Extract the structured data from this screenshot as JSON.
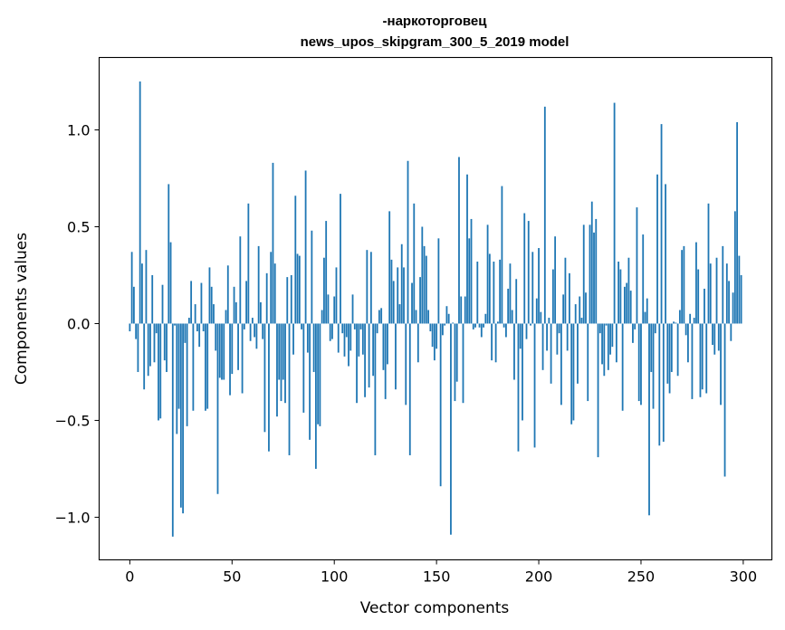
{
  "chart_data": {
    "type": "bar",
    "title": "-наркоторговец",
    "subtitle": "news_upos_skipgram_300_5_2019 model",
    "xlabel": "Vector components",
    "ylabel": "Components values",
    "xlim": [
      -15,
      314
    ],
    "ylim": [
      -1.22,
      1.374
    ],
    "xticks": [
      0,
      50,
      100,
      150,
      200,
      250,
      300
    ],
    "xtick_labels": [
      "0",
      "50",
      "100",
      "150",
      "200",
      "250",
      "300"
    ],
    "yticks": [
      -1.0,
      -0.5,
      0.0,
      0.5,
      1.0
    ],
    "ytick_labels": [
      "−1.0",
      "−0.5",
      "0.0",
      "0.5",
      "1.0"
    ],
    "grid": false,
    "bar_color": "#1f77b4",
    "bar_width": 0.8,
    "values": [
      -0.04,
      0.37,
      0.19,
      -0.08,
      -0.25,
      1.25,
      0.31,
      -0.34,
      0.38,
      -0.27,
      -0.22,
      0.25,
      -0.2,
      -0.05,
      -0.5,
      -0.49,
      0.2,
      -0.19,
      -0.25,
      0.72,
      0.42,
      -1.1,
      -0.01,
      -0.57,
      -0.44,
      -0.95,
      -0.98,
      -0.1,
      -0.53,
      0.03,
      0.22,
      -0.45,
      0.1,
      -0.04,
      -0.12,
      0.21,
      -0.04,
      -0.45,
      -0.44,
      0.29,
      0.19,
      0.1,
      -0.14,
      -0.88,
      -0.28,
      -0.29,
      -0.29,
      0.07,
      0.3,
      -0.37,
      -0.26,
      0.19,
      0.11,
      -0.24,
      0.45,
      -0.36,
      -0.03,
      0.22,
      0.62,
      -0.09,
      0.03,
      -0.07,
      -0.13,
      0.4,
      0.11,
      -0.08,
      -0.56,
      0.26,
      -0.66,
      0.37,
      0.83,
      0.31,
      -0.48,
      -0.29,
      -0.4,
      -0.29,
      -0.41,
      0.24,
      -0.68,
      0.25,
      -0.16,
      0.66,
      0.36,
      0.35,
      -0.03,
      -0.46,
      0.79,
      -0.15,
      -0.6,
      0.48,
      -0.25,
      -0.75,
      -0.52,
      -0.53,
      0.07,
      0.34,
      0.53,
      0.15,
      -0.09,
      -0.08,
      0.14,
      0.29,
      -0.15,
      0.67,
      -0.05,
      -0.17,
      -0.07,
      -0.22,
      -0.14,
      0.15,
      -0.03,
      -0.41,
      -0.17,
      -0.03,
      -0.16,
      -0.38,
      0.38,
      -0.33,
      0.37,
      -0.27,
      -0.68,
      -0.05,
      0.07,
      0.08,
      -0.24,
      -0.39,
      -0.21,
      0.58,
      0.33,
      0.22,
      -0.34,
      0.29,
      0.1,
      0.41,
      0.29,
      -0.42,
      0.84,
      -0.68,
      0.21,
      0.62,
      0.07,
      -0.2,
      0.24,
      0.5,
      0.4,
      0.35,
      0.07,
      -0.04,
      -0.12,
      -0.19,
      -0.13,
      0.44,
      -0.84,
      -0.06,
      -0.01,
      0.09,
      0.05,
      -1.09,
      0.005,
      -0.4,
      -0.3,
      0.86,
      0.14,
      -0.41,
      0.14,
      0.77,
      0.44,
      0.54,
      -0.03,
      -0.02,
      0.32,
      -0.02,
      -0.07,
      -0.02,
      0.05,
      0.51,
      0.36,
      -0.19,
      0.32,
      -0.2,
      0.01,
      0.33,
      0.71,
      -0.02,
      -0.07,
      0.18,
      0.31,
      0.07,
      -0.29,
      0.23,
      -0.66,
      -0.13,
      -0.5,
      0.57,
      -0.08,
      0.53,
      -0.01,
      0.37,
      -0.64,
      0.13,
      0.39,
      0.06,
      -0.24,
      1.12,
      -0.14,
      0.03,
      -0.31,
      0.28,
      0.45,
      -0.16,
      -0.05,
      -0.42,
      0.15,
      0.34,
      -0.14,
      0.26,
      -0.52,
      -0.5,
      0.1,
      -0.31,
      0.14,
      0.03,
      0.51,
      0.16,
      -0.4,
      0.51,
      0.63,
      0.47,
      0.54,
      -0.69,
      -0.05,
      -0.21,
      -0.27,
      -0.01,
      -0.24,
      -0.16,
      -0.12,
      1.14,
      -0.2,
      0.32,
      0.28,
      -0.45,
      0.19,
      0.21,
      0.34,
      0.17,
      -0.1,
      -0.03,
      0.6,
      -0.4,
      -0.42,
      0.46,
      0.06,
      0.13,
      -0.99,
      -0.25,
      -0.44,
      -0.05,
      0.77,
      -0.63,
      1.03,
      -0.61,
      0.72,
      -0.31,
      -0.36,
      -0.25,
      0.01,
      0.005,
      -0.27,
      0.07,
      0.38,
      0.4,
      -0.06,
      -0.2,
      0.05,
      -0.39,
      0.03,
      0.42,
      0.28,
      -0.38,
      -0.34,
      0.18,
      -0.36,
      0.62,
      0.31,
      -0.11,
      -0.16,
      0.34,
      -0.14,
      -0.42,
      0.4,
      -0.79,
      0.31,
      0.22,
      -0.09,
      0.16,
      0.58,
      1.04,
      0.35,
      0.25
    ]
  }
}
